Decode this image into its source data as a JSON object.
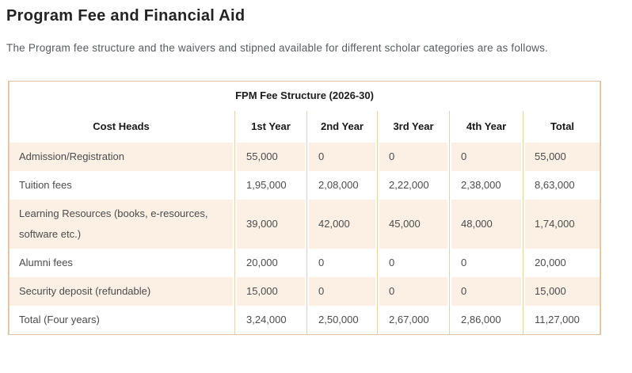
{
  "page": {
    "title": "Program Fee and Financial Aid",
    "intro": "The Program fee structure and the waivers and stipned available for different scholar categories are as follows."
  },
  "table": {
    "caption": "FPM Fee Structure (2026-30)",
    "columns": [
      "Cost Heads",
      "1st Year",
      "2nd Year",
      "3rd Year",
      "4th Year",
      "Total"
    ],
    "rows": [
      {
        "label": "Admission/Registration",
        "values": [
          "55,000",
          "0",
          "0",
          "0",
          "55,000"
        ]
      },
      {
        "label": "Tuition fees",
        "values": [
          "1,95,000",
          "2,08,000",
          "2,22,000",
          "2,38,000",
          "8,63,000"
        ]
      },
      {
        "label": "Learning Resources (books, e-resources, software etc.)",
        "values": [
          "39,000",
          "42,000",
          "45,000",
          "48,000",
          "1,74,000"
        ]
      },
      {
        "label": "Alumni fees",
        "values": [
          "20,000",
          "0",
          "0",
          "0",
          "20,000"
        ]
      },
      {
        "label": "Security deposit (refundable)",
        "values": [
          "15,000",
          "0",
          "0",
          "0",
          "15,000"
        ]
      },
      {
        "label": "Total (Four years)",
        "values": [
          "3,24,000",
          "2,50,000",
          "2,67,000",
          "2,86,000",
          "11,27,000"
        ]
      }
    ],
    "colors": {
      "stripe_bg": "#fcefe3",
      "outer_border": "#dfbf9d",
      "column_rule": "#eccfb0",
      "heading_text": "#1c1c1c",
      "body_text": "#4c4c4c"
    }
  }
}
